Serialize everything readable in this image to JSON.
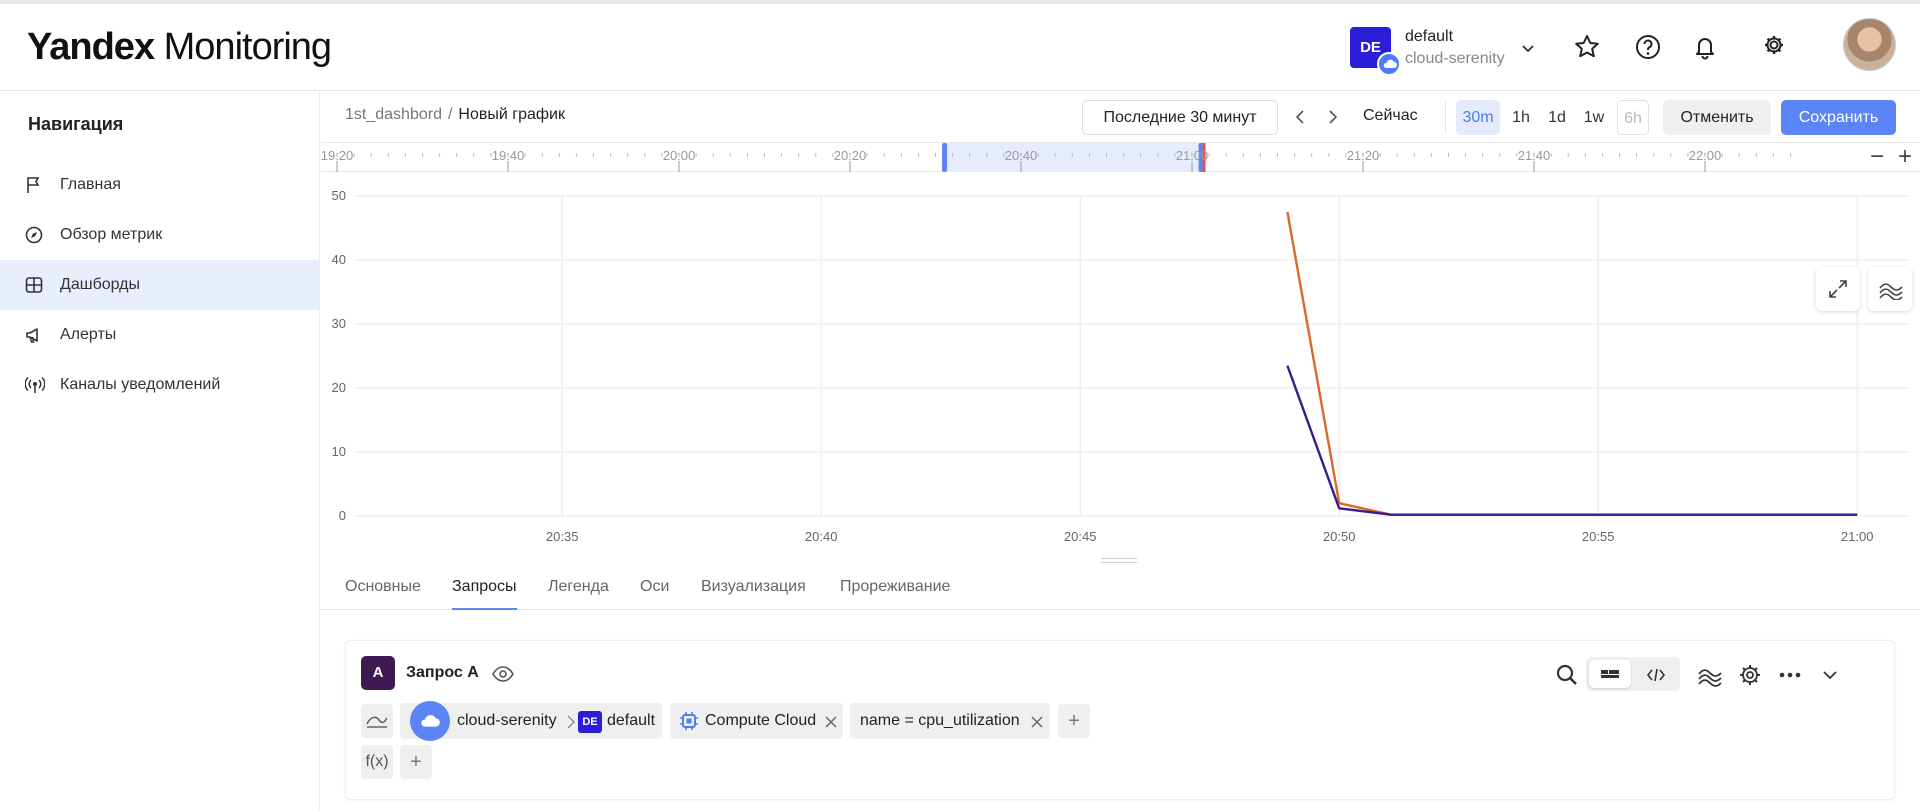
{
  "header": {
    "logo_bold": "Yandex",
    "logo_light": "Monitoring",
    "org": {
      "badge": "DE",
      "name": "default",
      "sub": "cloud-serenity"
    },
    "icons": [
      "star-icon",
      "help-icon",
      "bell-icon",
      "gear-icon"
    ]
  },
  "sidebar": {
    "title": "Навигация",
    "items": [
      {
        "label": "Главная",
        "icon": "flag-icon"
      },
      {
        "label": "Обзор метрик",
        "icon": "compass-icon"
      },
      {
        "label": "Дашборды",
        "icon": "grid-icon",
        "active": true
      },
      {
        "label": "Алерты",
        "icon": "megaphone-icon"
      },
      {
        "label": "Каналы уведомлений",
        "icon": "broadcast-icon"
      }
    ]
  },
  "toolbar": {
    "breadcrumb_parent": "1st_dashbord",
    "breadcrumb_sep": "/",
    "breadcrumb_current": "Новый график",
    "range_label": "Последние 30 минут",
    "now_label": "Сейчас",
    "time_chips": [
      "30m",
      "1h",
      "1d",
      "1w",
      "6h"
    ],
    "active_chip": "30m",
    "disabled_chip": "6h",
    "cancel_label": "Отменить",
    "save_label": "Сохранить"
  },
  "timeline": {
    "ticks": [
      "19:20",
      "19:40",
      "20:00",
      "20:20",
      "20:40",
      "21:00",
      "21:20",
      "21:40",
      "22:00"
    ],
    "selection": [
      "20:31",
      "21:01"
    ],
    "zoom_out": "−",
    "zoom_in": "+"
  },
  "chart_data": {
    "type": "line",
    "x": [
      "20:49",
      "20:50",
      "20:51",
      "20:55",
      "21:00"
    ],
    "x_tick_labels": [
      "20:35",
      "20:40",
      "20:45",
      "20:50",
      "20:55",
      "21:00"
    ],
    "y_tick_labels": [
      "0",
      "10",
      "20",
      "30",
      "40",
      "50"
    ],
    "ylim": [
      0,
      50
    ],
    "xlim": [
      "20:31",
      "21:01"
    ],
    "grid": true,
    "series": [
      {
        "color": "#d9692a",
        "values": [
          47.5,
          2.0,
          0.2,
          0.2,
          0.2
        ]
      },
      {
        "color": "#3a1a8f",
        "values": [
          23.5,
          1.2,
          0.2,
          0.2,
          0.2
        ]
      }
    ]
  },
  "tabs": [
    "Основные",
    "Запросы",
    "Легенда",
    "Оси",
    "Визуализация",
    "Прореживание"
  ],
  "active_tab": "Запросы",
  "query": {
    "badge": "A",
    "title": "Запрос A",
    "project": "cloud-serenity",
    "folder_badge": "DE",
    "folder": "default",
    "service": "Compute Cloud",
    "filter": "name = cpu_utilization",
    "func_label": "f(x)",
    "add": "+"
  }
}
